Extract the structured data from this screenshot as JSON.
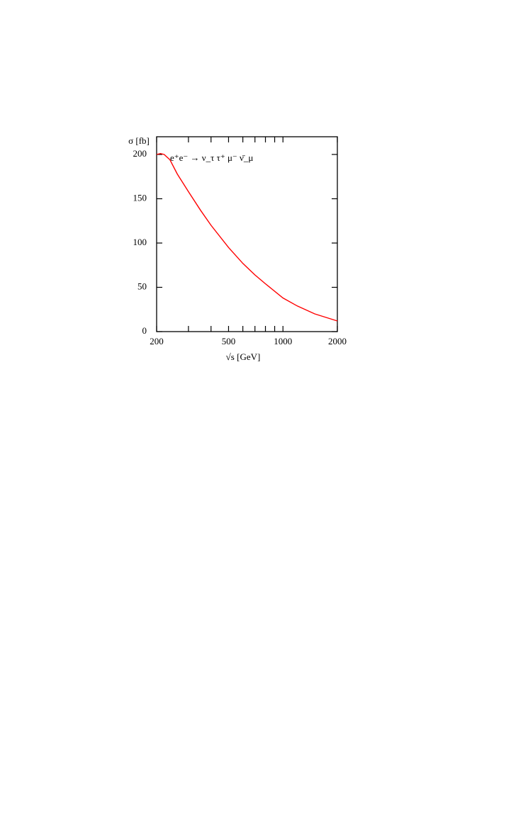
{
  "chart_data": {
    "type": "line",
    "annotation": "e⁺e⁻ → ν_τ τ⁺ μ⁻ ν̄_μ",
    "y_label": "σ [fb]",
    "x_label": "√s [GeV]",
    "x_scale": "log",
    "xlim": [
      200,
      2000
    ],
    "ylim": [
      0,
      220
    ],
    "xticks": [
      200,
      500,
      1000,
      2000
    ],
    "xminorticks": [
      300,
      400,
      600,
      700,
      800,
      900
    ],
    "yticks": [
      0,
      50,
      100,
      150,
      200
    ],
    "series": [
      {
        "color": "#ff0000",
        "x": [
          200,
          210,
          220,
          237,
          260,
          300,
          350,
          400,
          500,
          600,
          700,
          800,
          1000,
          1200,
          1500,
          2000
        ],
        "values": [
          200,
          201,
          200,
          194,
          178,
          158,
          137,
          120,
          95,
          77,
          64,
          54,
          38,
          29,
          20,
          12
        ]
      }
    ]
  }
}
